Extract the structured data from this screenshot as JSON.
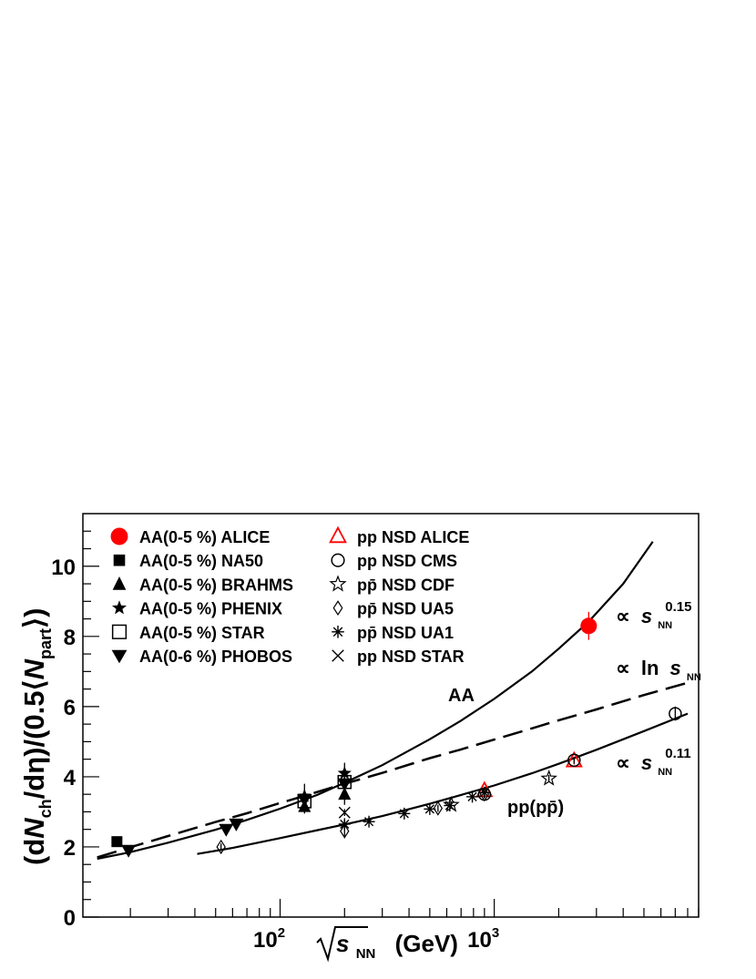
{
  "chart_data": {
    "type": "scatter",
    "xlabel_parts": {
      "prefix": "√",
      "var": "s",
      "sub": "NN",
      "unit": "(GeV)"
    },
    "ylabel_parts": {
      "p1": "(d",
      "N": "N",
      "ch": "ch",
      "p2": "/dη)/(0.5⟨",
      "Npart": "N",
      "part": "part",
      "p3": "⟩)"
    },
    "x_scale": "log",
    "xlim": [
      12,
      9000
    ],
    "ylim": [
      0,
      11.5
    ],
    "x_ticklabels": [
      {
        "x": 100,
        "base": "10",
        "exp": "2"
      },
      {
        "x": 1000,
        "base": "10",
        "exp": "3"
      }
    ],
    "y_ticks": [
      0,
      2,
      4,
      6,
      8,
      10
    ],
    "legend_position": "top-left",
    "colors": {
      "alice": "#ff0000",
      "default": "#000000"
    },
    "legend_left": [
      {
        "label": "AA(0-5 %) ALICE",
        "marker": "filled-circle",
        "color": "#ff0000"
      },
      {
        "label": "AA(0-5 %) NA50",
        "marker": "filled-square",
        "color": "#000000"
      },
      {
        "label": "AA(0-5 %) BRAHMS",
        "marker": "filled-triangle-up",
        "color": "#000000"
      },
      {
        "label": "AA(0-5 %) PHENIX",
        "marker": "filled-star",
        "color": "#000000"
      },
      {
        "label": "AA(0-5 %) STAR",
        "marker": "open-square",
        "color": "#000000"
      },
      {
        "label": "AA(0-6 %) PHOBOS",
        "marker": "filled-triangle-down",
        "color": "#000000"
      }
    ],
    "legend_right": [
      {
        "label": "pp NSD ALICE",
        "marker": "open-triangle-up",
        "color": "#ff0000"
      },
      {
        "label": "pp NSD CMS",
        "marker": "open-circle",
        "color": "#000000"
      },
      {
        "label": "pp̄ NSD CDF",
        "marker": "open-star",
        "color": "#000000"
      },
      {
        "label": "pp̄ NSD UA5",
        "marker": "open-diamond",
        "color": "#000000"
      },
      {
        "label": "pp̄ NSD UA1",
        "marker": "asterisk",
        "color": "#000000"
      },
      {
        "label": "pp NSD STAR",
        "marker": "cross",
        "color": "#000000"
      }
    ],
    "annotations": {
      "aa": "AA",
      "pp": "pp(pp̄)",
      "prop1": {
        "sym": "∝",
        "var": "s",
        "sub": "NN",
        "exp": "0.15"
      },
      "prop2": {
        "sym": "∝",
        "text": "ln",
        "var": "s",
        "sub": "NN"
      },
      "prop3": {
        "sym": "∝",
        "var": "s",
        "sub": "NN",
        "exp": "0.11"
      }
    },
    "series": [
      {
        "name": "AA(0-5 %) ALICE",
        "marker": "filled-circle",
        "color": "#ff0000",
        "points": [
          {
            "x": 2760,
            "y": 8.3,
            "err": 0.4
          }
        ]
      },
      {
        "name": "AA(0-5 %) NA50",
        "marker": "filled-square",
        "color": "#000000",
        "points": [
          {
            "x": 17.3,
            "y": 2.15,
            "err": 0.1
          }
        ]
      },
      {
        "name": "AA(0-5 %) BRAHMS",
        "marker": "filled-triangle-up",
        "color": "#000000",
        "points": [
          {
            "x": 130,
            "y": 3.15,
            "err": 0.2
          },
          {
            "x": 200,
            "y": 3.5,
            "err": 0.3
          }
        ]
      },
      {
        "name": "AA(0-5 %) PHENIX",
        "marker": "filled-star",
        "color": "#000000",
        "points": [
          {
            "x": 130,
            "y": 3.45,
            "err": 0.35
          },
          {
            "x": 200,
            "y": 4.1,
            "err": 0.3
          }
        ]
      },
      {
        "name": "AA(0-5 %) STAR",
        "marker": "open-square",
        "color": "#000000",
        "points": [
          {
            "x": 130,
            "y": 3.3,
            "err": 0.2
          },
          {
            "x": 200,
            "y": 3.85,
            "err": 0.15
          }
        ]
      },
      {
        "name": "AA(0-6 %) PHOBOS",
        "marker": "filled-triangle-down",
        "color": "#000000",
        "points": [
          {
            "x": 19.6,
            "y": 1.9,
            "err": 0.1
          },
          {
            "x": 56,
            "y": 2.5,
            "err": 0.1
          },
          {
            "x": 62.4,
            "y": 2.65,
            "err": 0.1
          },
          {
            "x": 130,
            "y": 3.35,
            "err": 0.15
          },
          {
            "x": 200,
            "y": 3.8,
            "err": 0.15
          }
        ]
      },
      {
        "name": "pp NSD ALICE",
        "marker": "open-triangle-up",
        "color": "#ff0000",
        "points": [
          {
            "x": 900,
            "y": 3.6,
            "err": 0.1
          },
          {
            "x": 2360,
            "y": 4.45,
            "err": 0.1
          }
        ]
      },
      {
        "name": "pp NSD CMS",
        "marker": "open-circle",
        "color": "#000000",
        "points": [
          {
            "x": 900,
            "y": 3.5,
            "err": 0.1
          },
          {
            "x": 2360,
            "y": 4.47,
            "err": 0.1
          },
          {
            "x": 7000,
            "y": 5.8,
            "err": 0.2
          }
        ]
      },
      {
        "name": "pp̄ NSD CDF",
        "marker": "open-star",
        "color": "#000000",
        "points": [
          {
            "x": 630,
            "y": 3.2,
            "err": 0.1
          },
          {
            "x": 1800,
            "y": 3.95,
            "err": 0.1
          }
        ]
      },
      {
        "name": "pp̄ NSD UA5",
        "marker": "open-diamond",
        "color": "#000000",
        "points": [
          {
            "x": 53,
            "y": 2.0,
            "err": 0.1
          },
          {
            "x": 200,
            "y": 2.45,
            "err": 0.2
          },
          {
            "x": 546,
            "y": 3.1,
            "err": 0.1
          },
          {
            "x": 900,
            "y": 3.5,
            "err": 0.1
          }
        ]
      },
      {
        "name": "pp̄ NSD UA1",
        "marker": "asterisk",
        "color": "#000000",
        "points": [
          {
            "x": 200,
            "y": 2.65,
            "err": 0.1
          },
          {
            "x": 260,
            "y": 2.72,
            "err": 0.05
          },
          {
            "x": 380,
            "y": 2.95,
            "err": 0.05
          },
          {
            "x": 500,
            "y": 3.08,
            "err": 0.05
          },
          {
            "x": 620,
            "y": 3.18,
            "err": 0.05
          },
          {
            "x": 790,
            "y": 3.43,
            "err": 0.05
          },
          {
            "x": 900,
            "y": 3.55,
            "err": 0.05
          }
        ]
      },
      {
        "name": "pp NSD STAR",
        "marker": "cross",
        "color": "#000000",
        "points": [
          {
            "x": 200,
            "y": 2.98,
            "err": 0.1
          }
        ]
      }
    ],
    "curves": [
      {
        "name": "AA power law",
        "style": "solid",
        "x": [
          14,
          20,
          30,
          50,
          70,
          100,
          150,
          200,
          300,
          500,
          700,
          1000,
          1500,
          2000,
          2760,
          4000,
          5500
        ],
        "y": [
          1.66,
          1.85,
          2.12,
          2.49,
          2.77,
          3.09,
          3.49,
          3.83,
          4.33,
          5.07,
          5.6,
          6.22,
          7.0,
          7.65,
          8.42,
          9.5,
          10.7
        ]
      },
      {
        "name": "AA logarithmic",
        "style": "dashed",
        "x": [
          14,
          20,
          30,
          50,
          70,
          100,
          150,
          200,
          300,
          500,
          700,
          1000,
          1500,
          2000,
          3000,
          5000,
          8000
        ],
        "y": [
          1.7,
          1.99,
          2.31,
          2.71,
          2.96,
          3.25,
          3.57,
          3.8,
          4.11,
          4.53,
          4.78,
          5.06,
          5.38,
          5.61,
          5.92,
          6.33,
          6.68
        ]
      },
      {
        "name": "pp power law",
        "style": "solid",
        "x": [
          41,
          60,
          100,
          150,
          200,
          300,
          500,
          700,
          1000,
          1500,
          2000,
          3000,
          5000,
          8000
        ],
        "y": [
          1.8,
          1.97,
          2.25,
          2.48,
          2.64,
          2.88,
          3.23,
          3.48,
          3.75,
          4.1,
          4.37,
          4.77,
          5.3,
          5.8
        ]
      }
    ]
  }
}
